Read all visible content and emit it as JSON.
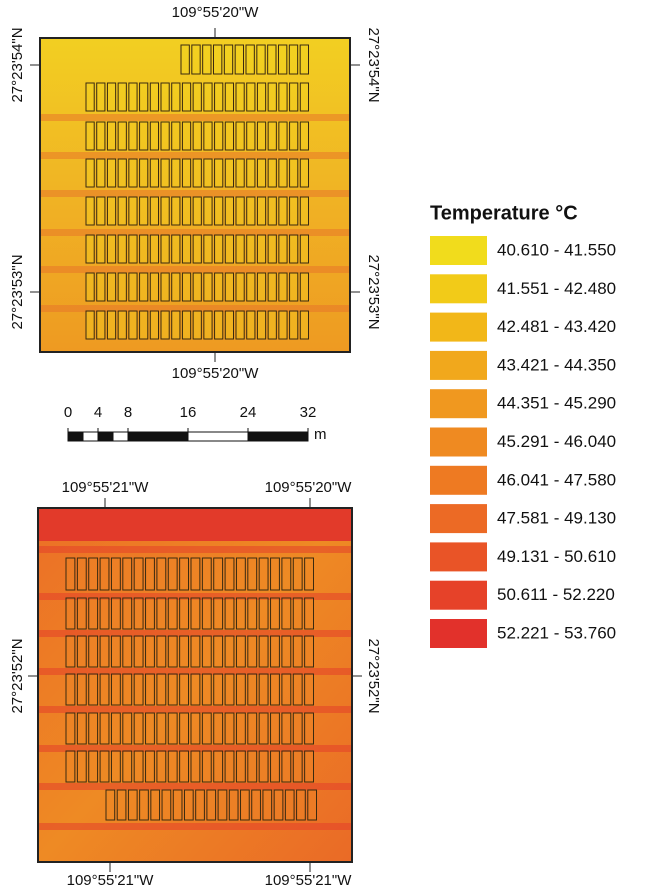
{
  "maps": [
    {
      "top_label": "109°55'20\"W",
      "bottom_label": "109°55'20\"W",
      "left_labels": [
        "27°23'54\"N",
        "27°23'53\"N"
      ],
      "right_labels": [
        "27°23'54\"N",
        "27°23'53\"N"
      ]
    },
    {
      "top_labels": [
        "109°55'21\"W",
        "109°55'20\"W"
      ],
      "bottom_labels": [
        "109°55'21\"W",
        "109°55'21\"W"
      ],
      "left_label": "27°23'52\"N",
      "right_label": "27°23'52\"N"
    }
  ],
  "scale_bar": {
    "ticks": [
      0,
      4,
      8,
      16,
      24,
      32
    ],
    "unit": "m"
  },
  "legend": {
    "title": "Temperature °C",
    "classes": [
      {
        "label": "40.610 - 41.550",
        "color": "#f1dc1c"
      },
      {
        "label": "41.551 - 42.480",
        "color": "#f2cb18"
      },
      {
        "label": "42.481 - 43.420",
        "color": "#f2b718"
      },
      {
        "label": "43.421 - 44.350",
        "color": "#f1a81c"
      },
      {
        "label": "44.351 - 45.290",
        "color": "#f0981f"
      },
      {
        "label": "45.291 - 46.040",
        "color": "#ef8a21"
      },
      {
        "label": "46.041 - 47.580",
        "color": "#ee7a22"
      },
      {
        "label": "47.581 - 49.130",
        "color": "#ec6a25"
      },
      {
        "label": "49.131 - 50.610",
        "color": "#e95427"
      },
      {
        "label": "50.611 - 52.220",
        "color": "#e64229"
      },
      {
        "label": "52.221 - 53.760",
        "color": "#e2312b"
      }
    ]
  }
}
